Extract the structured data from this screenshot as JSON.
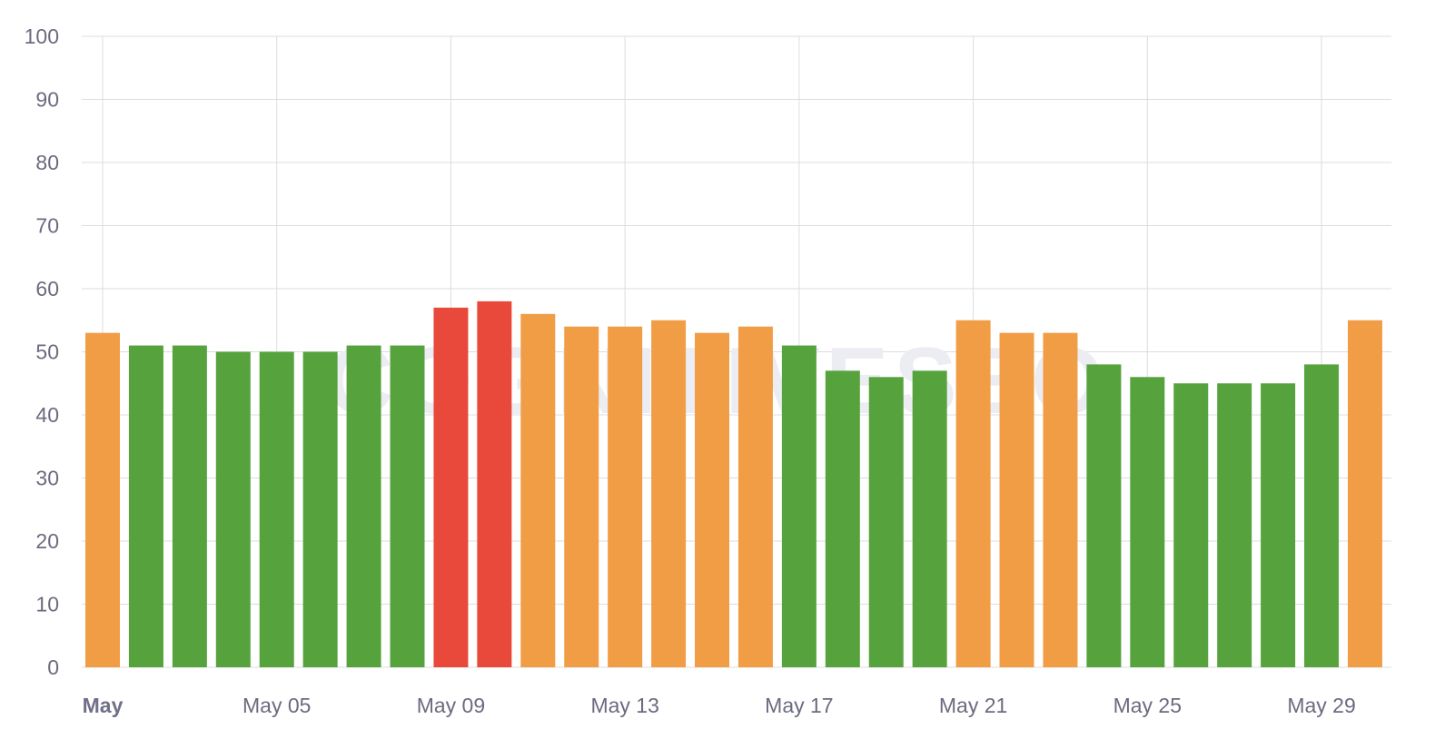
{
  "watermark": "COGNITIVESEO",
  "chart_data": {
    "type": "bar",
    "title": "",
    "xlabel": "",
    "ylabel": "",
    "ylim": [
      0,
      100
    ],
    "yticks": [
      0,
      10,
      20,
      30,
      40,
      50,
      60,
      70,
      80,
      90,
      100
    ],
    "grid": true,
    "legend": "none",
    "colors": {
      "green": "#56a33e",
      "orange": "#f19d45",
      "red": "#e8493a"
    },
    "x_tick_labels": [
      {
        "day": 1,
        "label": "May",
        "bold": true
      },
      {
        "day": 5,
        "label": "May 05",
        "bold": false
      },
      {
        "day": 9,
        "label": "May 09",
        "bold": false
      },
      {
        "day": 13,
        "label": "May 13",
        "bold": false
      },
      {
        "day": 17,
        "label": "May 17",
        "bold": false
      },
      {
        "day": 21,
        "label": "May 21",
        "bold": false
      },
      {
        "day": 25,
        "label": "May 25",
        "bold": false
      },
      {
        "day": 29,
        "label": "May 29",
        "bold": false
      }
    ],
    "days": [
      1,
      2,
      3,
      4,
      5,
      6,
      7,
      8,
      9,
      10,
      11,
      12,
      13,
      14,
      15,
      16,
      17,
      18,
      19,
      20,
      21,
      22,
      23,
      24,
      25,
      26,
      27,
      28,
      29,
      30
    ],
    "values": [
      53,
      51,
      51,
      50,
      50,
      50,
      51,
      51,
      57,
      58,
      56,
      54,
      54,
      55,
      53,
      54,
      51,
      47,
      46,
      47,
      55,
      53,
      53,
      48,
      46,
      45,
      45,
      45,
      48,
      55
    ],
    "bar_colors": [
      "orange",
      "green",
      "green",
      "green",
      "green",
      "green",
      "green",
      "green",
      "red",
      "red",
      "orange",
      "orange",
      "orange",
      "orange",
      "orange",
      "orange",
      "green",
      "green",
      "green",
      "green",
      "orange",
      "orange",
      "orange",
      "green",
      "green",
      "green",
      "green",
      "green",
      "green",
      "orange"
    ]
  }
}
